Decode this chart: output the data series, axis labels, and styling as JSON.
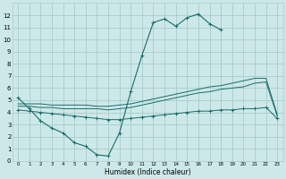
{
  "xlabel": "Humidex (Indice chaleur)",
  "xlim": [
    -0.5,
    23.5
  ],
  "ylim": [
    0,
    13
  ],
  "xticks": [
    0,
    1,
    2,
    3,
    4,
    5,
    6,
    7,
    8,
    9,
    10,
    11,
    12,
    13,
    14,
    15,
    16,
    17,
    18,
    19,
    20,
    21,
    22,
    23
  ],
  "yticks": [
    0,
    1,
    2,
    3,
    4,
    5,
    6,
    7,
    8,
    9,
    10,
    11,
    12
  ],
  "bg_color": "#cde8e8",
  "grid_color": "#a8cccc",
  "line_color": "#1a6b6b",
  "series1_x": [
    0,
    1,
    2,
    3,
    4,
    5,
    6,
    7,
    8,
    9,
    10,
    11,
    12,
    13,
    14,
    15,
    16,
    17,
    18
  ],
  "series1_y": [
    5.2,
    4.3,
    3.3,
    2.7,
    2.3,
    1.5,
    1.2,
    0.5,
    0.4,
    2.3,
    5.7,
    8.7,
    11.4,
    11.7,
    11.1,
    11.8,
    12.1,
    11.3,
    10.8
  ],
  "series2_x": [
    0,
    1,
    2,
    3,
    4,
    5,
    6,
    7,
    8,
    9,
    10,
    11,
    12,
    13,
    14,
    15,
    16,
    17,
    18,
    19,
    20,
    21,
    22,
    23
  ],
  "series2_y": [
    4.2,
    4.1,
    4.0,
    3.9,
    3.8,
    3.7,
    3.6,
    3.5,
    3.4,
    3.4,
    3.5,
    3.6,
    3.7,
    3.8,
    3.9,
    4.0,
    4.1,
    4.1,
    4.2,
    4.2,
    4.3,
    4.3,
    4.4,
    3.5
  ],
  "series3_x": [
    0,
    1,
    2,
    3,
    4,
    5,
    6,
    7,
    8,
    9,
    10,
    11,
    12,
    13,
    14,
    15,
    16,
    17,
    18,
    19,
    20,
    21,
    22,
    23
  ],
  "series3_y": [
    4.5,
    4.5,
    4.4,
    4.4,
    4.3,
    4.3,
    4.3,
    4.3,
    4.2,
    4.3,
    4.4,
    4.6,
    4.8,
    5.0,
    5.2,
    5.4,
    5.6,
    5.7,
    5.9,
    6.0,
    6.1,
    6.4,
    6.5,
    3.7
  ],
  "series4_x": [
    0,
    1,
    2,
    3,
    4,
    5,
    6,
    7,
    8,
    9,
    10,
    11,
    12,
    13,
    14,
    15,
    16,
    17,
    18,
    19,
    20,
    21,
    22,
    23
  ],
  "series4_y": [
    4.7,
    4.7,
    4.7,
    4.6,
    4.6,
    4.6,
    4.6,
    4.5,
    4.5,
    4.6,
    4.7,
    4.9,
    5.1,
    5.3,
    5.5,
    5.7,
    5.9,
    6.1,
    6.2,
    6.4,
    6.6,
    6.8,
    6.8,
    3.8
  ]
}
